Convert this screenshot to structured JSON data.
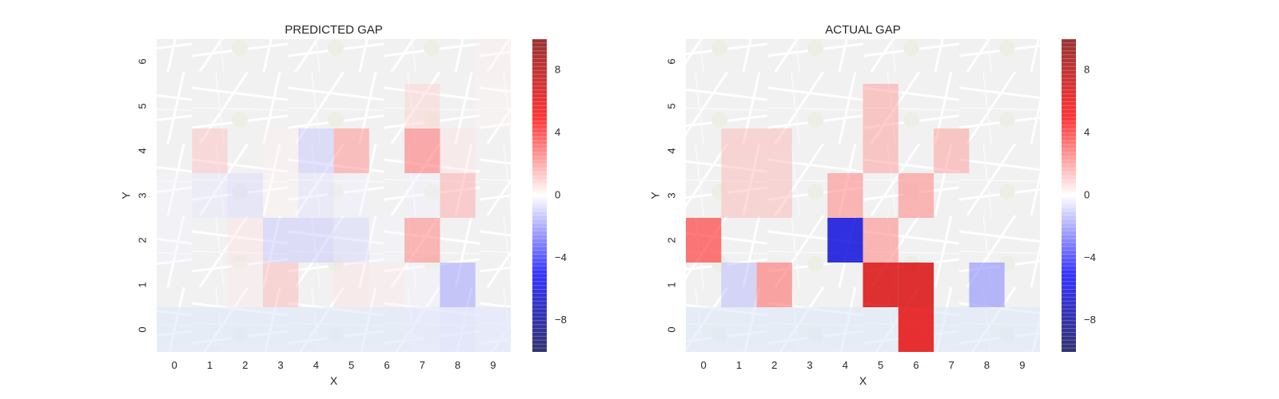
{
  "chart_data": [
    {
      "type": "heatmap",
      "title": "PREDICTED GAP",
      "xlabel": "X",
      "ylabel": "Y",
      "x": [
        0,
        1,
        2,
        3,
        4,
        5,
        6,
        7,
        8,
        9
      ],
      "y": [
        0,
        1,
        2,
        3,
        4,
        5,
        6
      ],
      "colorbar": {
        "ticks": [
          8,
          4,
          0,
          -4,
          -8
        ],
        "range": [
          -10,
          10
        ],
        "colormap": "seismic"
      },
      "background": "map",
      "z": [
        [
          0,
          0,
          0,
          0,
          0,
          0,
          0,
          -0.4,
          -0.6,
          -0.4
        ],
        [
          0,
          0,
          0.4,
          1.5,
          0,
          0.6,
          0.4,
          -0.2,
          -2.0,
          0
        ],
        [
          -0.2,
          0,
          0.6,
          -1.2,
          -1.2,
          -0.9,
          -0.2,
          2.5,
          0,
          0
        ],
        [
          -0.2,
          -0.5,
          -0.8,
          0.2,
          -0.6,
          -0.3,
          0,
          -0.3,
          1.8,
          0
        ],
        [
          0,
          1.3,
          0,
          0.3,
          -1.2,
          2.2,
          0,
          2.8,
          0.6,
          0
        ],
        [
          0,
          0,
          0,
          0,
          0,
          0,
          0,
          1.0,
          0,
          0.2
        ],
        [
          0,
          0,
          0,
          0,
          0,
          0,
          0,
          0,
          0,
          0.3
        ]
      ]
    },
    {
      "type": "heatmap",
      "title": "ACTUAL GAP",
      "xlabel": "X",
      "ylabel": "Y",
      "x": [
        0,
        1,
        2,
        3,
        4,
        5,
        6,
        7,
        8,
        9
      ],
      "y": [
        0,
        1,
        2,
        3,
        4,
        5,
        6
      ],
      "colorbar": {
        "ticks": [
          8,
          4,
          0,
          -4,
          -8
        ],
        "range": [
          -10,
          10
        ],
        "colormap": "seismic"
      },
      "background": "map",
      "z": [
        [
          0,
          0,
          0,
          0,
          0,
          0,
          6,
          0,
          0,
          0
        ],
        [
          0,
          -1.5,
          3,
          0,
          0,
          6.5,
          6.5,
          0,
          -2.5,
          0
        ],
        [
          4,
          0,
          0,
          0,
          -6,
          2.5,
          0,
          0,
          0,
          0
        ],
        [
          0,
          1.5,
          1.5,
          0,
          2.5,
          0,
          2.5,
          0,
          0,
          0
        ],
        [
          0,
          1.5,
          1.5,
          0,
          0,
          2,
          0,
          2,
          0,
          0
        ],
        [
          0,
          0,
          0,
          0,
          0,
          2,
          0,
          0,
          0,
          0
        ],
        [
          0,
          0,
          0,
          0,
          0,
          0,
          0,
          0,
          0,
          0
        ]
      ]
    }
  ]
}
